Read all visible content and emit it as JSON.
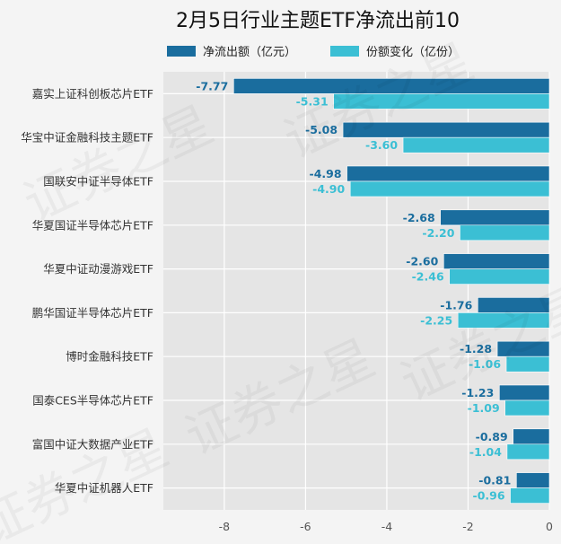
{
  "chart_data": {
    "type": "bar",
    "orientation": "horizontal",
    "title": "2月5日行业主题ETF净流出前10",
    "categories": [
      "嘉实上证科创板芯片ETF",
      "华宝中证金融科技主题ETF",
      "国联安中证半导体ETF",
      "华夏国证半导体芯片ETF",
      "华夏中证动漫游戏ETF",
      "鹏华国证半导体芯片ETF",
      "博时金融科技ETF",
      "国泰CES半导体芯片ETF",
      "富国中证大数据产业ETF",
      "华夏中证机器人ETF"
    ],
    "series": [
      {
        "name": "净流出额（亿元）",
        "color": "#1a6d9e",
        "values": [
          -7.77,
          -5.08,
          -4.98,
          -2.68,
          -2.6,
          -1.76,
          -1.28,
          -1.23,
          -0.89,
          -0.81
        ],
        "labels": [
          "-7.77",
          "-5.08",
          "-4.98",
          "-2.68",
          "-2.60",
          "-1.76",
          "-1.28",
          "-1.23",
          "-0.89",
          "-0.81"
        ]
      },
      {
        "name": "份额变化（亿份）",
        "color": "#3bbfd4",
        "values": [
          -5.31,
          -3.6,
          -4.9,
          -2.2,
          -2.46,
          -2.25,
          -1.06,
          -1.09,
          -1.04,
          -0.96
        ],
        "labels": [
          "-5.31",
          "-3.60",
          "-4.90",
          "-2.20",
          "-2.46",
          "-2.25",
          "-1.06",
          "-1.09",
          "-1.04",
          "-0.96"
        ]
      }
    ],
    "xlim": [
      -9.5,
      0
    ],
    "xticks": [
      "-8",
      "-6",
      "-4",
      "-2",
      "0"
    ],
    "xtick_values": [
      -8,
      -6,
      -4,
      -2,
      0
    ],
    "grid": true,
    "legend": "top",
    "plot_background": "#e5e5e5",
    "watermark": "证券之星"
  }
}
